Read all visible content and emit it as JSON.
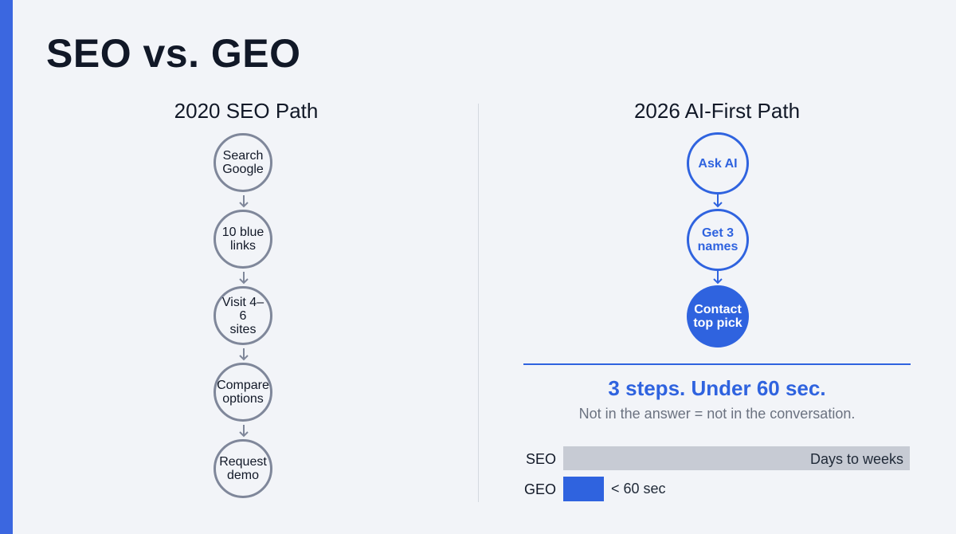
{
  "title": "SEO vs. GEO",
  "colors": {
    "accent": "#2f63df",
    "old_path": "#7f879a",
    "bar_seo": "#c7cbd4"
  },
  "left_path": {
    "heading": "2020 SEO Path",
    "steps": [
      [
        "Search",
        "Google"
      ],
      [
        "10 blue",
        "links"
      ],
      [
        "Visit 4–6",
        "sites"
      ],
      [
        "Compare",
        "options"
      ],
      [
        "Request",
        "demo"
      ]
    ]
  },
  "right_path": {
    "heading": "2026 AI-First Path",
    "steps": [
      [
        "Ask AI"
      ],
      [
        "Get 3",
        "names"
      ],
      [
        "Contact",
        "top pick"
      ]
    ],
    "headline": "3 steps. Under 60 sec.",
    "subline": "Not in the answer = not in the conversation."
  },
  "comparison": {
    "seo_label": "SEO",
    "seo_value": "Days to weeks",
    "geo_label": "GEO",
    "geo_value": "< 60 sec"
  }
}
